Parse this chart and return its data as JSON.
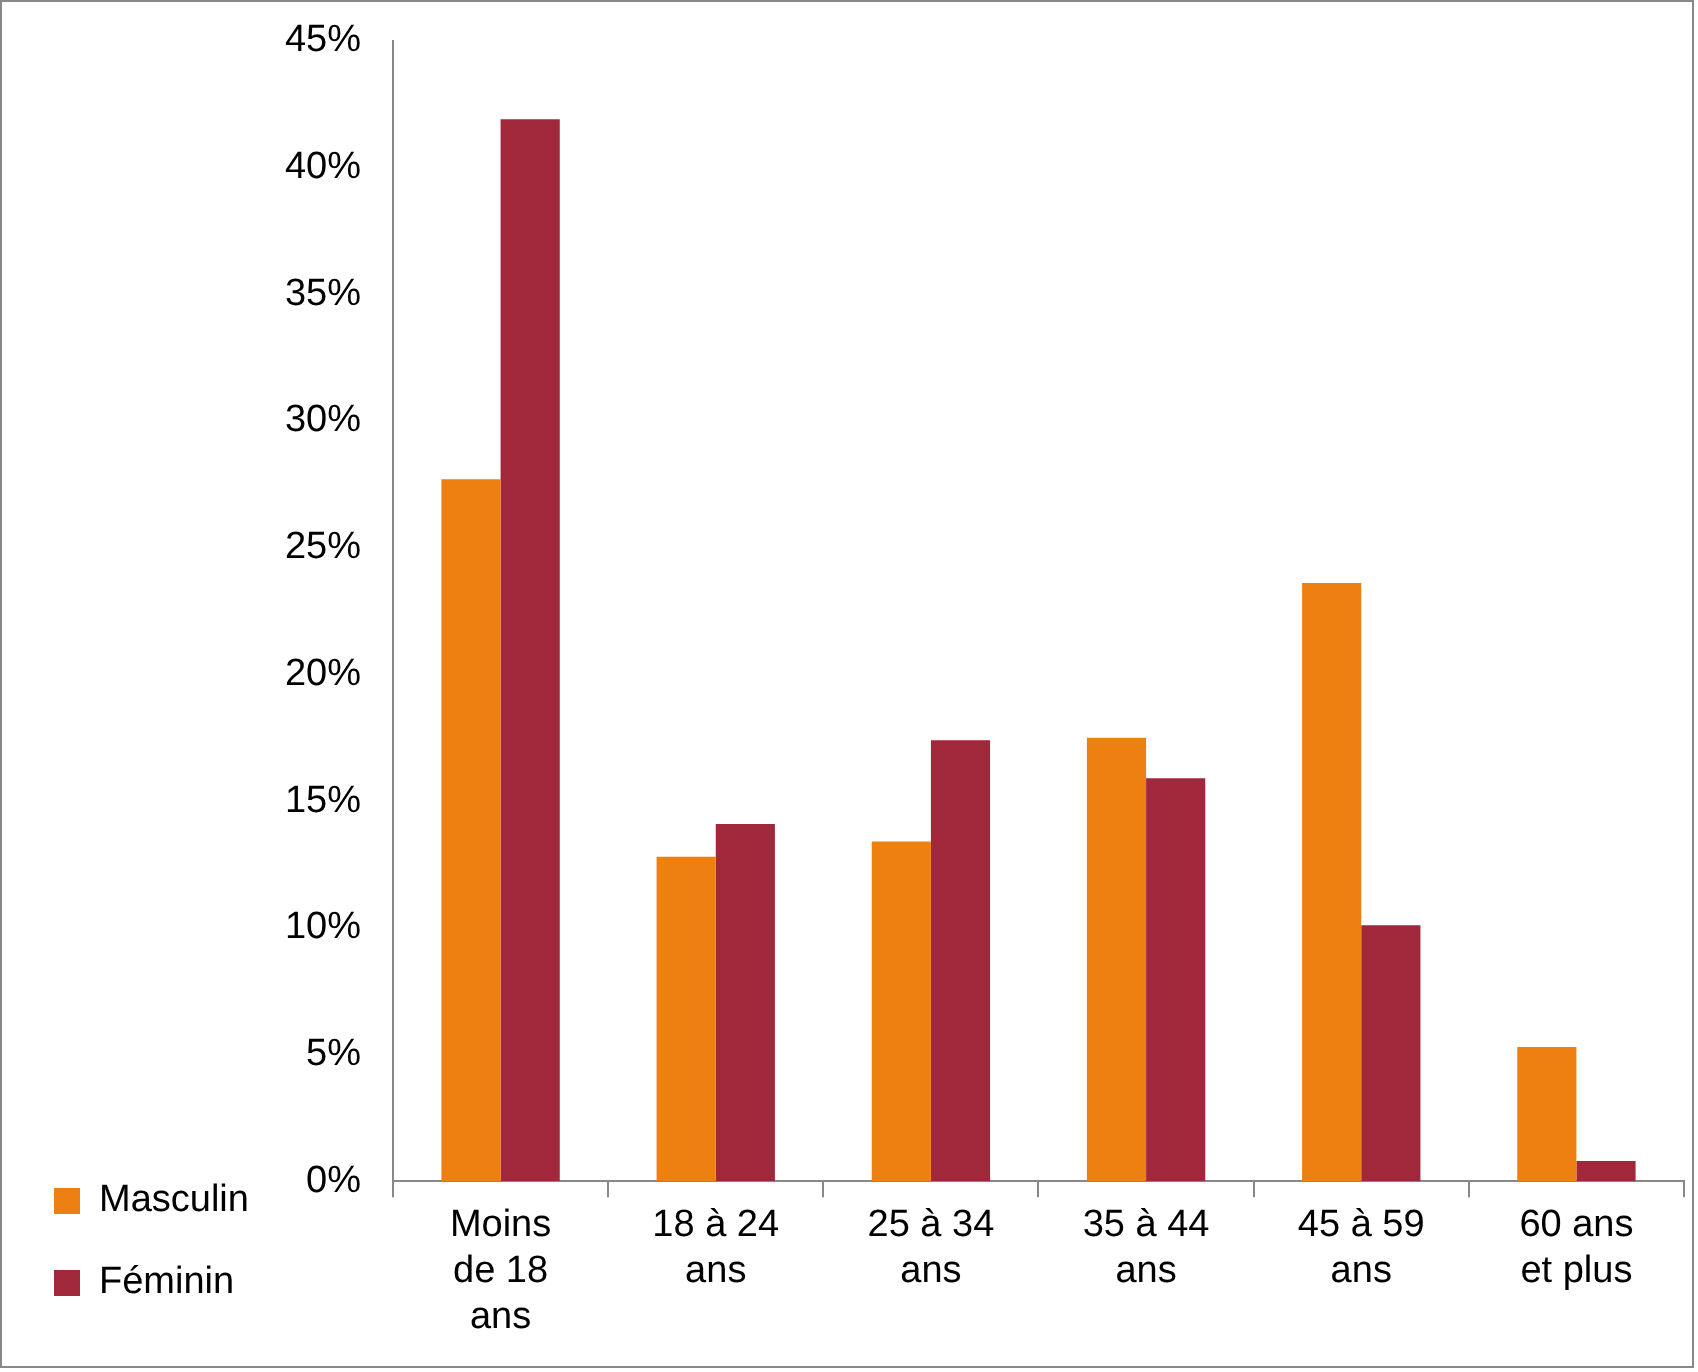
{
  "chart_data": {
    "type": "bar",
    "categories": [
      "Moins de 18 ans",
      "18 à 24 ans",
      "25 à 34 ans",
      "35 à 44 ans",
      "45 à 59 ans",
      "60 ans et plus"
    ],
    "series": [
      {
        "name": "Masculin",
        "color": "#ee7f11",
        "values": [
          27.7,
          12.8,
          13.4,
          17.5,
          23.6,
          5.3
        ]
      },
      {
        "name": "Féminin",
        "color": "#a0283a",
        "values": [
          41.9,
          14.1,
          17.4,
          15.9,
          10.1,
          0.8
        ]
      }
    ],
    "ylim": [
      0,
      45
    ],
    "yticks": [
      {
        "value": 0,
        "label": "0%"
      },
      {
        "value": 5,
        "label": "5%"
      },
      {
        "value": 10,
        "label": "10%"
      },
      {
        "value": 15,
        "label": "15%"
      },
      {
        "value": 20,
        "label": "20%"
      },
      {
        "value": 25,
        "label": "25%"
      },
      {
        "value": 30,
        "label": "30%"
      },
      {
        "value": 35,
        "label": "35%"
      },
      {
        "value": 40,
        "label": "40%"
      },
      {
        "value": 45,
        "label": "45%"
      }
    ],
    "grid": false,
    "legend": "left"
  }
}
